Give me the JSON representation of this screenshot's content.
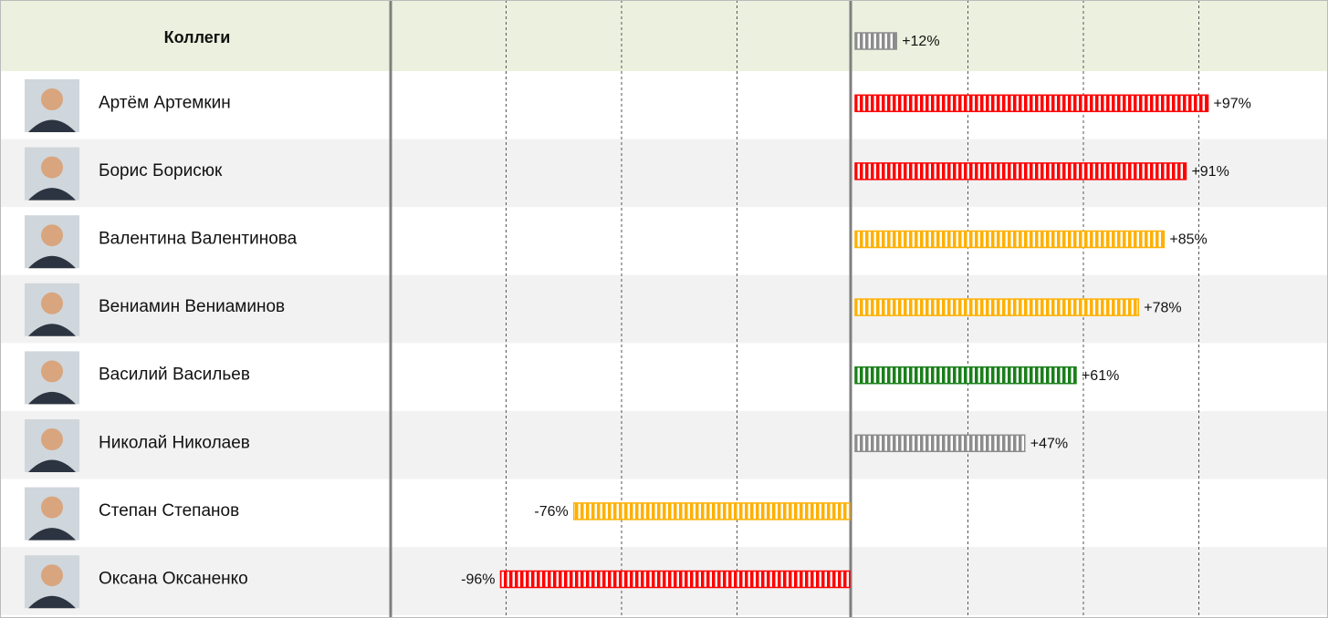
{
  "chart_data": {
    "type": "diverging-bar",
    "title": "Коллеги",
    "total": 12,
    "total_label": "+12%",
    "total_color": "#8c8c8c",
    "categories": [
      "Артём Артемкин",
      "Борис Борисюк",
      "Валентина Валентинова",
      "Вениамин Вениаминов",
      "Василий Васильев",
      "Николай Николаев",
      "Степан Степанов",
      "Оксана Оксаненко"
    ],
    "values": [
      97,
      91,
      85,
      78,
      61,
      47,
      -76,
      -96
    ],
    "value_labels": [
      "+97%",
      "+91%",
      "+85%",
      "+78%",
      "+61%",
      "+47%",
      "-76%",
      "-96%"
    ],
    "colors": [
      "#ff0000",
      "#ff0000",
      "#ffb000",
      "#ffb000",
      "#1a7f1a",
      "#8c8c8c",
      "#ffb000",
      "#ff0000"
    ],
    "xlim": [
      -126,
      126
    ]
  }
}
